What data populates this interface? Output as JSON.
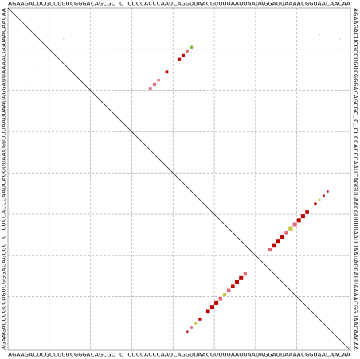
{
  "chart_data": {
    "type": "dotplot",
    "sequence": "AGAAGACUCGCCUGUCGGGACAGCGC_C_CUCCACCCAAUCAGGUUAACGUUUUAAUUAAUAGGAUUAAAACGGUAACAACAA",
    "grid": true,
    "ticks": [
      10,
      20,
      30,
      40,
      50,
      60,
      70,
      80
    ],
    "points": [
      {
        "col": 4,
        "row": 17,
        "p": 0.02,
        "color": "#c8c83c"
      },
      {
        "col": 6,
        "row": 15,
        "p": 0.02,
        "color": "#7cb832"
      },
      {
        "col": 13,
        "row": 7,
        "p": 0.02,
        "color": "#7cb832"
      },
      {
        "col": 15,
        "row": 6,
        "p": 0.02,
        "color": "#c8c83c"
      },
      {
        "col": 75,
        "row": 6,
        "p": 0.02,
        "color": "#7cb832"
      },
      {
        "col": 80,
        "row": 7,
        "p": 0.02,
        "color": "#7cb832"
      },
      {
        "col": 34,
        "row": 19,
        "p": 0.4,
        "color": "#e06a78"
      },
      {
        "col": 35,
        "row": 18,
        "p": 0.45,
        "color": "#e06a78"
      },
      {
        "col": 36,
        "row": 17,
        "p": 0.3,
        "color": "#e06a78"
      },
      {
        "col": 38,
        "row": 15,
        "p": 0.4,
        "color": "#c00000"
      },
      {
        "col": 41,
        "row": 12,
        "p": 0.5,
        "color": "#c00000"
      },
      {
        "col": 42,
        "row": 11,
        "p": 0.35,
        "color": "#c00000"
      },
      {
        "col": 43,
        "row": 10,
        "p": 0.25,
        "color": "#e06a78"
      },
      {
        "col": 44,
        "row": 9,
        "p": 0.3,
        "color": "#7cb832"
      },
      {
        "col": 63,
        "row": 58,
        "p": 0.5,
        "color": "#e06a78"
      },
      {
        "col": 64,
        "row": 57,
        "p": 0.6,
        "color": "#c00000"
      },
      {
        "col": 65,
        "row": 56,
        "p": 0.7,
        "color": "#c00000"
      },
      {
        "col": 66,
        "row": 55,
        "p": 0.7,
        "color": "#c00000"
      },
      {
        "col": 67,
        "row": 54,
        "p": 0.6,
        "color": "#e06a78"
      },
      {
        "col": 68,
        "row": 53,
        "p": 0.8,
        "color": "#c8c83c"
      },
      {
        "col": 69,
        "row": 52,
        "p": 0.7,
        "color": "#e06a78"
      },
      {
        "col": 70,
        "row": 51,
        "p": 0.7,
        "color": "#c00000"
      },
      {
        "col": 71,
        "row": 50,
        "p": 0.7,
        "color": "#c00000"
      },
      {
        "col": 72,
        "row": 49,
        "p": 0.6,
        "color": "#c00000"
      },
      {
        "col": 74,
        "row": 47,
        "p": 0.3,
        "color": "#c00000"
      },
      {
        "col": 75,
        "row": 46,
        "p": 0.2,
        "color": "#c8c83c"
      },
      {
        "col": 76,
        "row": 45,
        "p": 0.2,
        "color": "#c00000"
      },
      {
        "col": 77,
        "row": 44,
        "p": 0.15,
        "color": "#c00000"
      },
      {
        "col": 43,
        "row": 78,
        "p": 0.15,
        "color": "#c00000"
      },
      {
        "col": 44,
        "row": 77,
        "p": 0.2,
        "color": "#e06a78"
      },
      {
        "col": 45,
        "row": 76,
        "p": 0.2,
        "color": "#c8c83c"
      },
      {
        "col": 46,
        "row": 75,
        "p": 0.3,
        "color": "#c00000"
      },
      {
        "col": 48,
        "row": 73,
        "p": 0.6,
        "color": "#c00000"
      },
      {
        "col": 49,
        "row": 72,
        "p": 0.7,
        "color": "#c00000"
      },
      {
        "col": 50,
        "row": 71,
        "p": 0.7,
        "color": "#c00000"
      },
      {
        "col": 51,
        "row": 70,
        "p": 0.6,
        "color": "#e06a78"
      },
      {
        "col": 52,
        "row": 69,
        "p": 0.5,
        "color": "#c8c83c"
      },
      {
        "col": 53,
        "row": 68,
        "p": 0.6,
        "color": "#e06a78"
      },
      {
        "col": 54,
        "row": 67,
        "p": 0.6,
        "color": "#c00000"
      },
      {
        "col": 55,
        "row": 66,
        "p": 0.7,
        "color": "#c00000"
      },
      {
        "col": 56,
        "row": 65,
        "p": 0.7,
        "color": "#c00000"
      },
      {
        "col": 57,
        "row": 64,
        "p": 0.5,
        "color": "#e06a78"
      }
    ]
  }
}
